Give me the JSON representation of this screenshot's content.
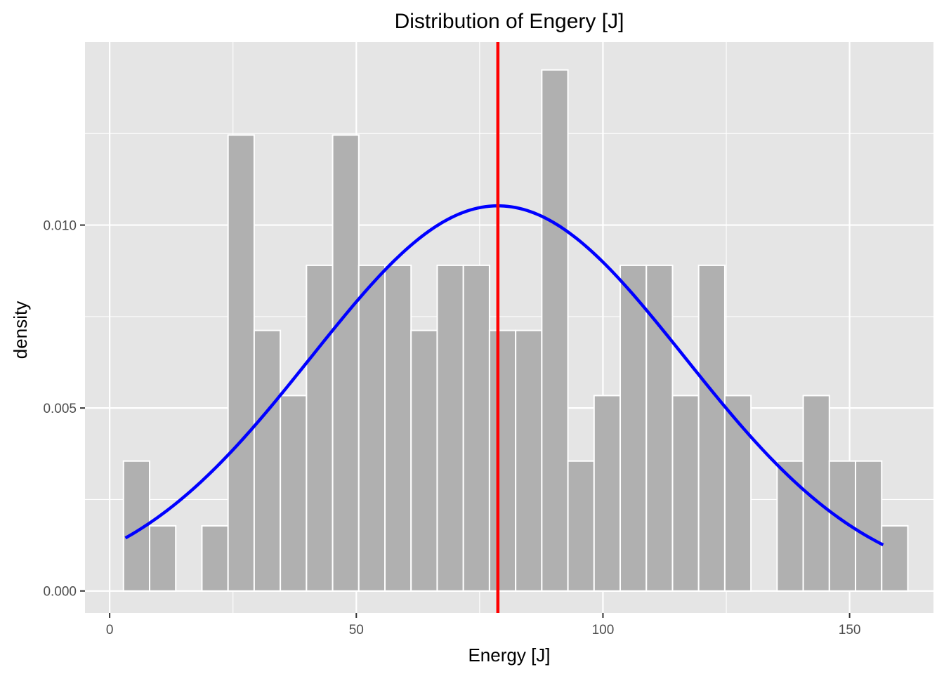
{
  "chart_data": {
    "type": "bar",
    "subtype": "histogram",
    "title": "Distribution of Engery [J]",
    "xlabel": "Energy [J]",
    "ylabel": "density",
    "xlim": [
      -5,
      167
    ],
    "ylim": [
      -0.0006,
      0.015
    ],
    "x_ticks": [
      0,
      50,
      100,
      150
    ],
    "x_tick_labels": [
      "0",
      "50",
      "100",
      "150"
    ],
    "y_ticks": [
      0.0,
      0.005,
      0.01
    ],
    "y_tick_labels": [
      "0.000",
      "0.005",
      "0.010"
    ],
    "grid": true,
    "bin_width": 5.3,
    "bins": [
      {
        "x0": 2.8,
        "x1": 8.1,
        "density": 0.00355
      },
      {
        "x0": 8.1,
        "x1": 13.4,
        "density": 0.00178
      },
      {
        "x0": 13.4,
        "x1": 18.7,
        "density": 0.0
      },
      {
        "x0": 18.7,
        "x1": 24.0,
        "density": 0.00178
      },
      {
        "x0": 24.0,
        "x1": 29.3,
        "density": 0.01246
      },
      {
        "x0": 29.3,
        "x1": 34.6,
        "density": 0.00712
      },
      {
        "x0": 34.6,
        "x1": 39.9,
        "density": 0.00534
      },
      {
        "x0": 39.9,
        "x1": 45.2,
        "density": 0.0089
      },
      {
        "x0": 45.2,
        "x1": 50.5,
        "density": 0.01246
      },
      {
        "x0": 50.5,
        "x1": 55.8,
        "density": 0.0089
      },
      {
        "x0": 55.8,
        "x1": 61.1,
        "density": 0.0089
      },
      {
        "x0": 61.1,
        "x1": 66.4,
        "density": 0.00712
      },
      {
        "x0": 66.4,
        "x1": 71.7,
        "density": 0.0089
      },
      {
        "x0": 71.7,
        "x1": 77.0,
        "density": 0.0089
      },
      {
        "x0": 77.0,
        "x1": 82.3,
        "density": 0.00712
      },
      {
        "x0": 82.3,
        "x1": 87.6,
        "density": 0.00712
      },
      {
        "x0": 87.6,
        "x1": 92.9,
        "density": 0.01424
      },
      {
        "x0": 92.9,
        "x1": 98.2,
        "density": 0.00355
      },
      {
        "x0": 98.2,
        "x1": 103.5,
        "density": 0.00534
      },
      {
        "x0": 103.5,
        "x1": 108.8,
        "density": 0.0089
      },
      {
        "x0": 108.8,
        "x1": 114.1,
        "density": 0.0089
      },
      {
        "x0": 114.1,
        "x1": 119.4,
        "density": 0.00534
      },
      {
        "x0": 119.4,
        "x1": 124.7,
        "density": 0.0089
      },
      {
        "x0": 124.7,
        "x1": 130.0,
        "density": 0.00534
      },
      {
        "x0": 130.0,
        "x1": 135.3,
        "density": 0.0
      },
      {
        "x0": 135.3,
        "x1": 140.6,
        "density": 0.00355
      },
      {
        "x0": 140.6,
        "x1": 145.9,
        "density": 0.00534
      },
      {
        "x0": 145.9,
        "x1": 151.2,
        "density": 0.00355
      },
      {
        "x0": 151.2,
        "x1": 156.5,
        "density": 0.00355
      },
      {
        "x0": 156.5,
        "x1": 161.8,
        "density": 0.00178
      }
    ],
    "normal_curve": {
      "mean": 78.7,
      "sd": 37.9,
      "x_range": [
        3.2,
        156.8
      ],
      "color": "#0000ff"
    },
    "mean_line": {
      "x": 78.7,
      "color": "#ff0000"
    },
    "colors": {
      "panel_background": "#e5e5e5",
      "grid": "#ffffff",
      "bar_fill": "#b0b0b0",
      "bar_outline": "#ffffff"
    }
  }
}
